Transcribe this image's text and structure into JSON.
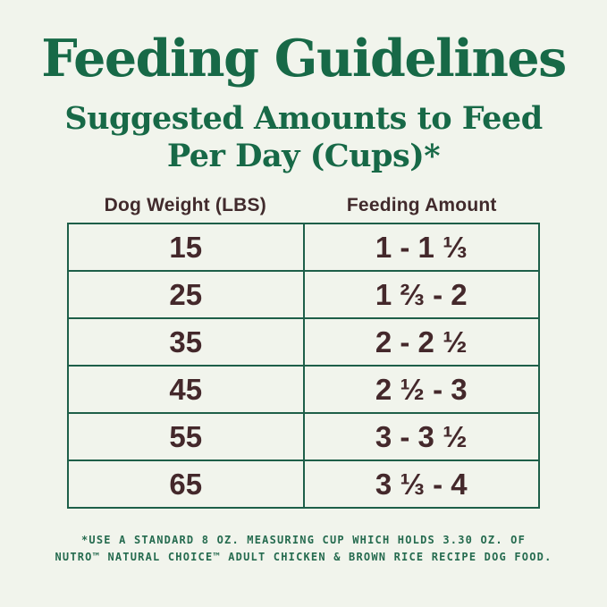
{
  "title": "Feeding Guidelines",
  "subtitle": {
    "line1": "Suggested Amounts to Feed",
    "line2": "Per Day (Cups)*"
  },
  "table": {
    "headers": [
      "Dog Weight (LBS)",
      "Feeding Amount"
    ],
    "rows": [
      {
        "weight": "15",
        "amount": "1 - 1 ⅓"
      },
      {
        "weight": "25",
        "amount": "1 ⅔ - 2"
      },
      {
        "weight": "35",
        "amount": "2 - 2 ½"
      },
      {
        "weight": "45",
        "amount": "2 ½ - 3"
      },
      {
        "weight": "55",
        "amount": "3 - 3 ½"
      },
      {
        "weight": "65",
        "amount": "3 ⅓ - 4"
      }
    ]
  },
  "footnote": {
    "line1": "*USE A STANDARD 8 OZ. MEASURING CUP WHICH HOLDS 3.30 OZ. OF",
    "line2": "NUTRO™ NATURAL CHOICE™ ADULT CHICKEN & BROWN RICE RECIPE DOG FOOD."
  },
  "colors": {
    "background": "#f1f4ec",
    "heading_green": "#176947",
    "table_border_green": "#1e5f49",
    "table_text_brown": "#44282b",
    "footnote_green": "#256b4f"
  },
  "chart_data": {
    "type": "table",
    "title": "Feeding Guidelines",
    "subtitle": "Suggested Amounts to Feed Per Day (Cups)*",
    "columns": [
      "Dog Weight (LBS)",
      "Feeding Amount"
    ],
    "rows": [
      [
        "15",
        "1 - 1 ⅓"
      ],
      [
        "25",
        "1 ⅔ - 2"
      ],
      [
        "35",
        "2 - 2 ½"
      ],
      [
        "45",
        "2 ½ - 3"
      ],
      [
        "55",
        "3 - 3 ½"
      ],
      [
        "65",
        "3 ⅓ - 4"
      ]
    ],
    "feeding_amount_cups_numeric": [
      {
        "dog_weight_lbs": 15,
        "min_cups": 1.0,
        "max_cups": 1.33
      },
      {
        "dog_weight_lbs": 25,
        "min_cups": 1.67,
        "max_cups": 2.0
      },
      {
        "dog_weight_lbs": 35,
        "min_cups": 2.0,
        "max_cups": 2.5
      },
      {
        "dog_weight_lbs": 45,
        "min_cups": 2.5,
        "max_cups": 3.0
      },
      {
        "dog_weight_lbs": 55,
        "min_cups": 3.0,
        "max_cups": 3.5
      },
      {
        "dog_weight_lbs": 65,
        "min_cups": 3.33,
        "max_cups": 4.0
      }
    ],
    "footnote": "*USE A STANDARD 8 OZ. MEASURING CUP WHICH HOLDS 3.30 OZ. OF NUTRO™ NATURAL CHOICE™ ADULT CHICKEN & BROWN RICE RECIPE DOG FOOD."
  }
}
